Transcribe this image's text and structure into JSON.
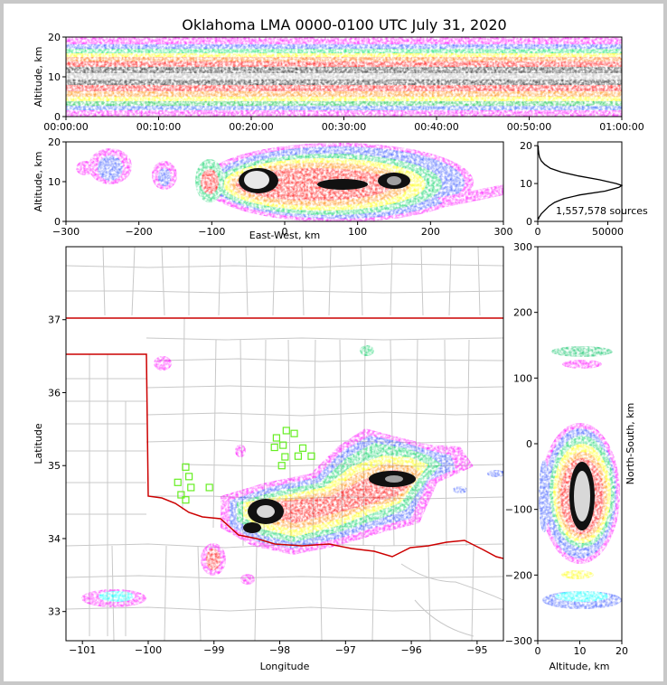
{
  "title": "Oklahoma LMA 0000-0100 UTC July 31, 2020",
  "colors": {
    "density_scale": [
      "#ff00ff",
      "#9b30ff",
      "#2040ff",
      "#00ffff",
      "#00c000",
      "#ffff00",
      "#ff9900",
      "#ff0000",
      "#c00000",
      "#111111",
      "#ffffff"
    ],
    "border": "#cc0000",
    "county_lines": "#c8c8c8",
    "station": "#66ee22"
  },
  "chart_data": [
    {
      "id": "time-height",
      "type": "heatmap",
      "ylabel": "Altitude, km",
      "ylim": [
        0,
        20
      ],
      "yticks": [
        "0",
        "10",
        "20"
      ],
      "xlim_minutes": [
        0,
        60
      ],
      "xticks": [
        "00:00:00",
        "00:10:00",
        "00:20:00",
        "00:30:00",
        "00:40:00",
        "00:50:00",
        "01:00:00"
      ],
      "peak_altitude_km": 9.5
    },
    {
      "id": "east-west-altitude",
      "type": "heatmap",
      "xlabel": "East-West, km",
      "ylabel": "Altitude, km",
      "xlim": [
        -300,
        300
      ],
      "ylim": [
        0,
        20
      ],
      "xticks": [
        "−300",
        "−200",
        "−100",
        "0",
        "100",
        "200",
        "300"
      ],
      "yticks": [
        "0",
        "10",
        "20"
      ]
    },
    {
      "id": "altitude-histogram",
      "type": "line",
      "xlim": [
        0,
        60000
      ],
      "ylim": [
        0,
        21
      ],
      "xticks": [
        "0",
        "50000"
      ],
      "yticks": [
        "0",
        "10",
        "20"
      ],
      "annotation": "1,557,578 sources",
      "altitude_km": [
        0.5,
        1,
        2,
        3,
        4,
        5,
        6,
        7,
        8,
        9,
        9.5,
        10,
        11,
        12,
        13,
        14,
        15,
        16,
        17,
        18,
        19,
        20
      ],
      "counts": [
        400,
        800,
        2500,
        5200,
        8000,
        12000,
        18500,
        30000,
        48000,
        58000,
        60000,
        56000,
        44000,
        29000,
        17000,
        9000,
        5000,
        2500,
        1200,
        700,
        400,
        300
      ]
    },
    {
      "id": "plan-view",
      "type": "heatmap",
      "xlabel": "Longitude",
      "ylabel": "Latitude",
      "xlim": [
        -101.25,
        -94.6
      ],
      "ylim": [
        32.6,
        38.0
      ],
      "xticks": [
        "−101",
        "−100",
        "−99",
        "−98",
        "−97",
        "−96",
        "−95"
      ],
      "yticks": [
        "33",
        "34",
        "35",
        "36",
        "37"
      ],
      "stations_lonlat": [
        [
          -97.9,
          35.48
        ],
        [
          -97.78,
          35.44
        ],
        [
          -98.05,
          35.38
        ],
        [
          -97.95,
          35.28
        ],
        [
          -98.08,
          35.25
        ],
        [
          -97.65,
          35.24
        ],
        [
          -97.52,
          35.13
        ],
        [
          -97.72,
          35.13
        ],
        [
          -97.92,
          35.12
        ],
        [
          -97.97,
          35.0
        ],
        [
          -99.43,
          34.98
        ],
        [
          -99.38,
          34.85
        ],
        [
          -99.55,
          34.77
        ],
        [
          -99.35,
          34.7
        ],
        [
          -99.07,
          34.7
        ],
        [
          -99.5,
          34.6
        ],
        [
          -99.43,
          34.53
        ]
      ]
    },
    {
      "id": "north-south-altitude",
      "type": "heatmap",
      "xlabel": "Altitude, km",
      "ylabel": "North-South, km",
      "xlim": [
        0,
        20
      ],
      "ylim": [
        -300,
        300
      ],
      "xticks": [
        "0",
        "10",
        "20"
      ],
      "yticks": [
        "−300",
        "−200",
        "−100",
        "0",
        "100",
        "200",
        "300"
      ]
    }
  ]
}
